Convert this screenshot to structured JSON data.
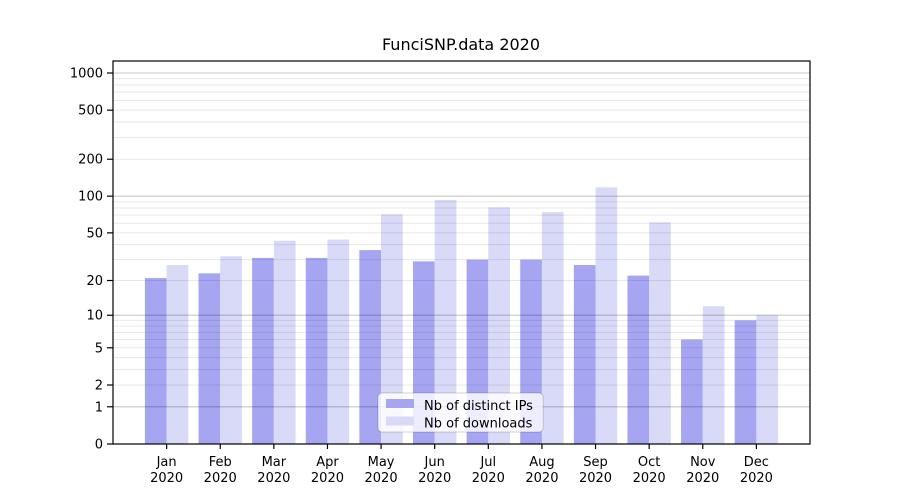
{
  "chart_data": {
    "type": "bar",
    "title": "FunciSNP.data 2020",
    "year": "2020",
    "months": [
      "Jan",
      "Feb",
      "Mar",
      "Apr",
      "May",
      "Jun",
      "Jul",
      "Aug",
      "Sep",
      "Oct",
      "Nov",
      "Dec"
    ],
    "categories": [
      "Jan 2020",
      "Feb 2020",
      "Mar 2020",
      "Apr 2020",
      "May 2020",
      "Jun 2020",
      "Jul 2020",
      "Aug 2020",
      "Sep 2020",
      "Oct 2020",
      "Nov 2020",
      "Dec 2020"
    ],
    "series": [
      {
        "name": "Nb of distinct IPs",
        "color": "#a5a5f2",
        "values": [
          21,
          23,
          31,
          31,
          36,
          29,
          30,
          30,
          27,
          22,
          6,
          9
        ]
      },
      {
        "name": "Nb of downloads",
        "color": "#d9d9f8",
        "values": [
          27,
          32,
          43,
          44,
          71,
          93,
          81,
          74,
          118,
          61,
          12,
          10
        ]
      }
    ],
    "y_ticks": [
      0,
      1,
      2,
      5,
      10,
      20,
      50,
      100,
      200,
      500,
      1000
    ],
    "y_scale": "log10(1+x)",
    "ylim": [
      0,
      1230
    ],
    "xlabel": "",
    "ylabel": "",
    "grid": true,
    "legend_position": "lower center",
    "colors": {
      "axis": "#000000",
      "major_grid": "rgba(0,0,0,0.22)",
      "minor_grid": "rgba(0,0,0,0.09)",
      "legend_border": "rgba(0,0,0,0.18)",
      "legend_bg": "rgba(255,255,255,0.8)"
    }
  }
}
